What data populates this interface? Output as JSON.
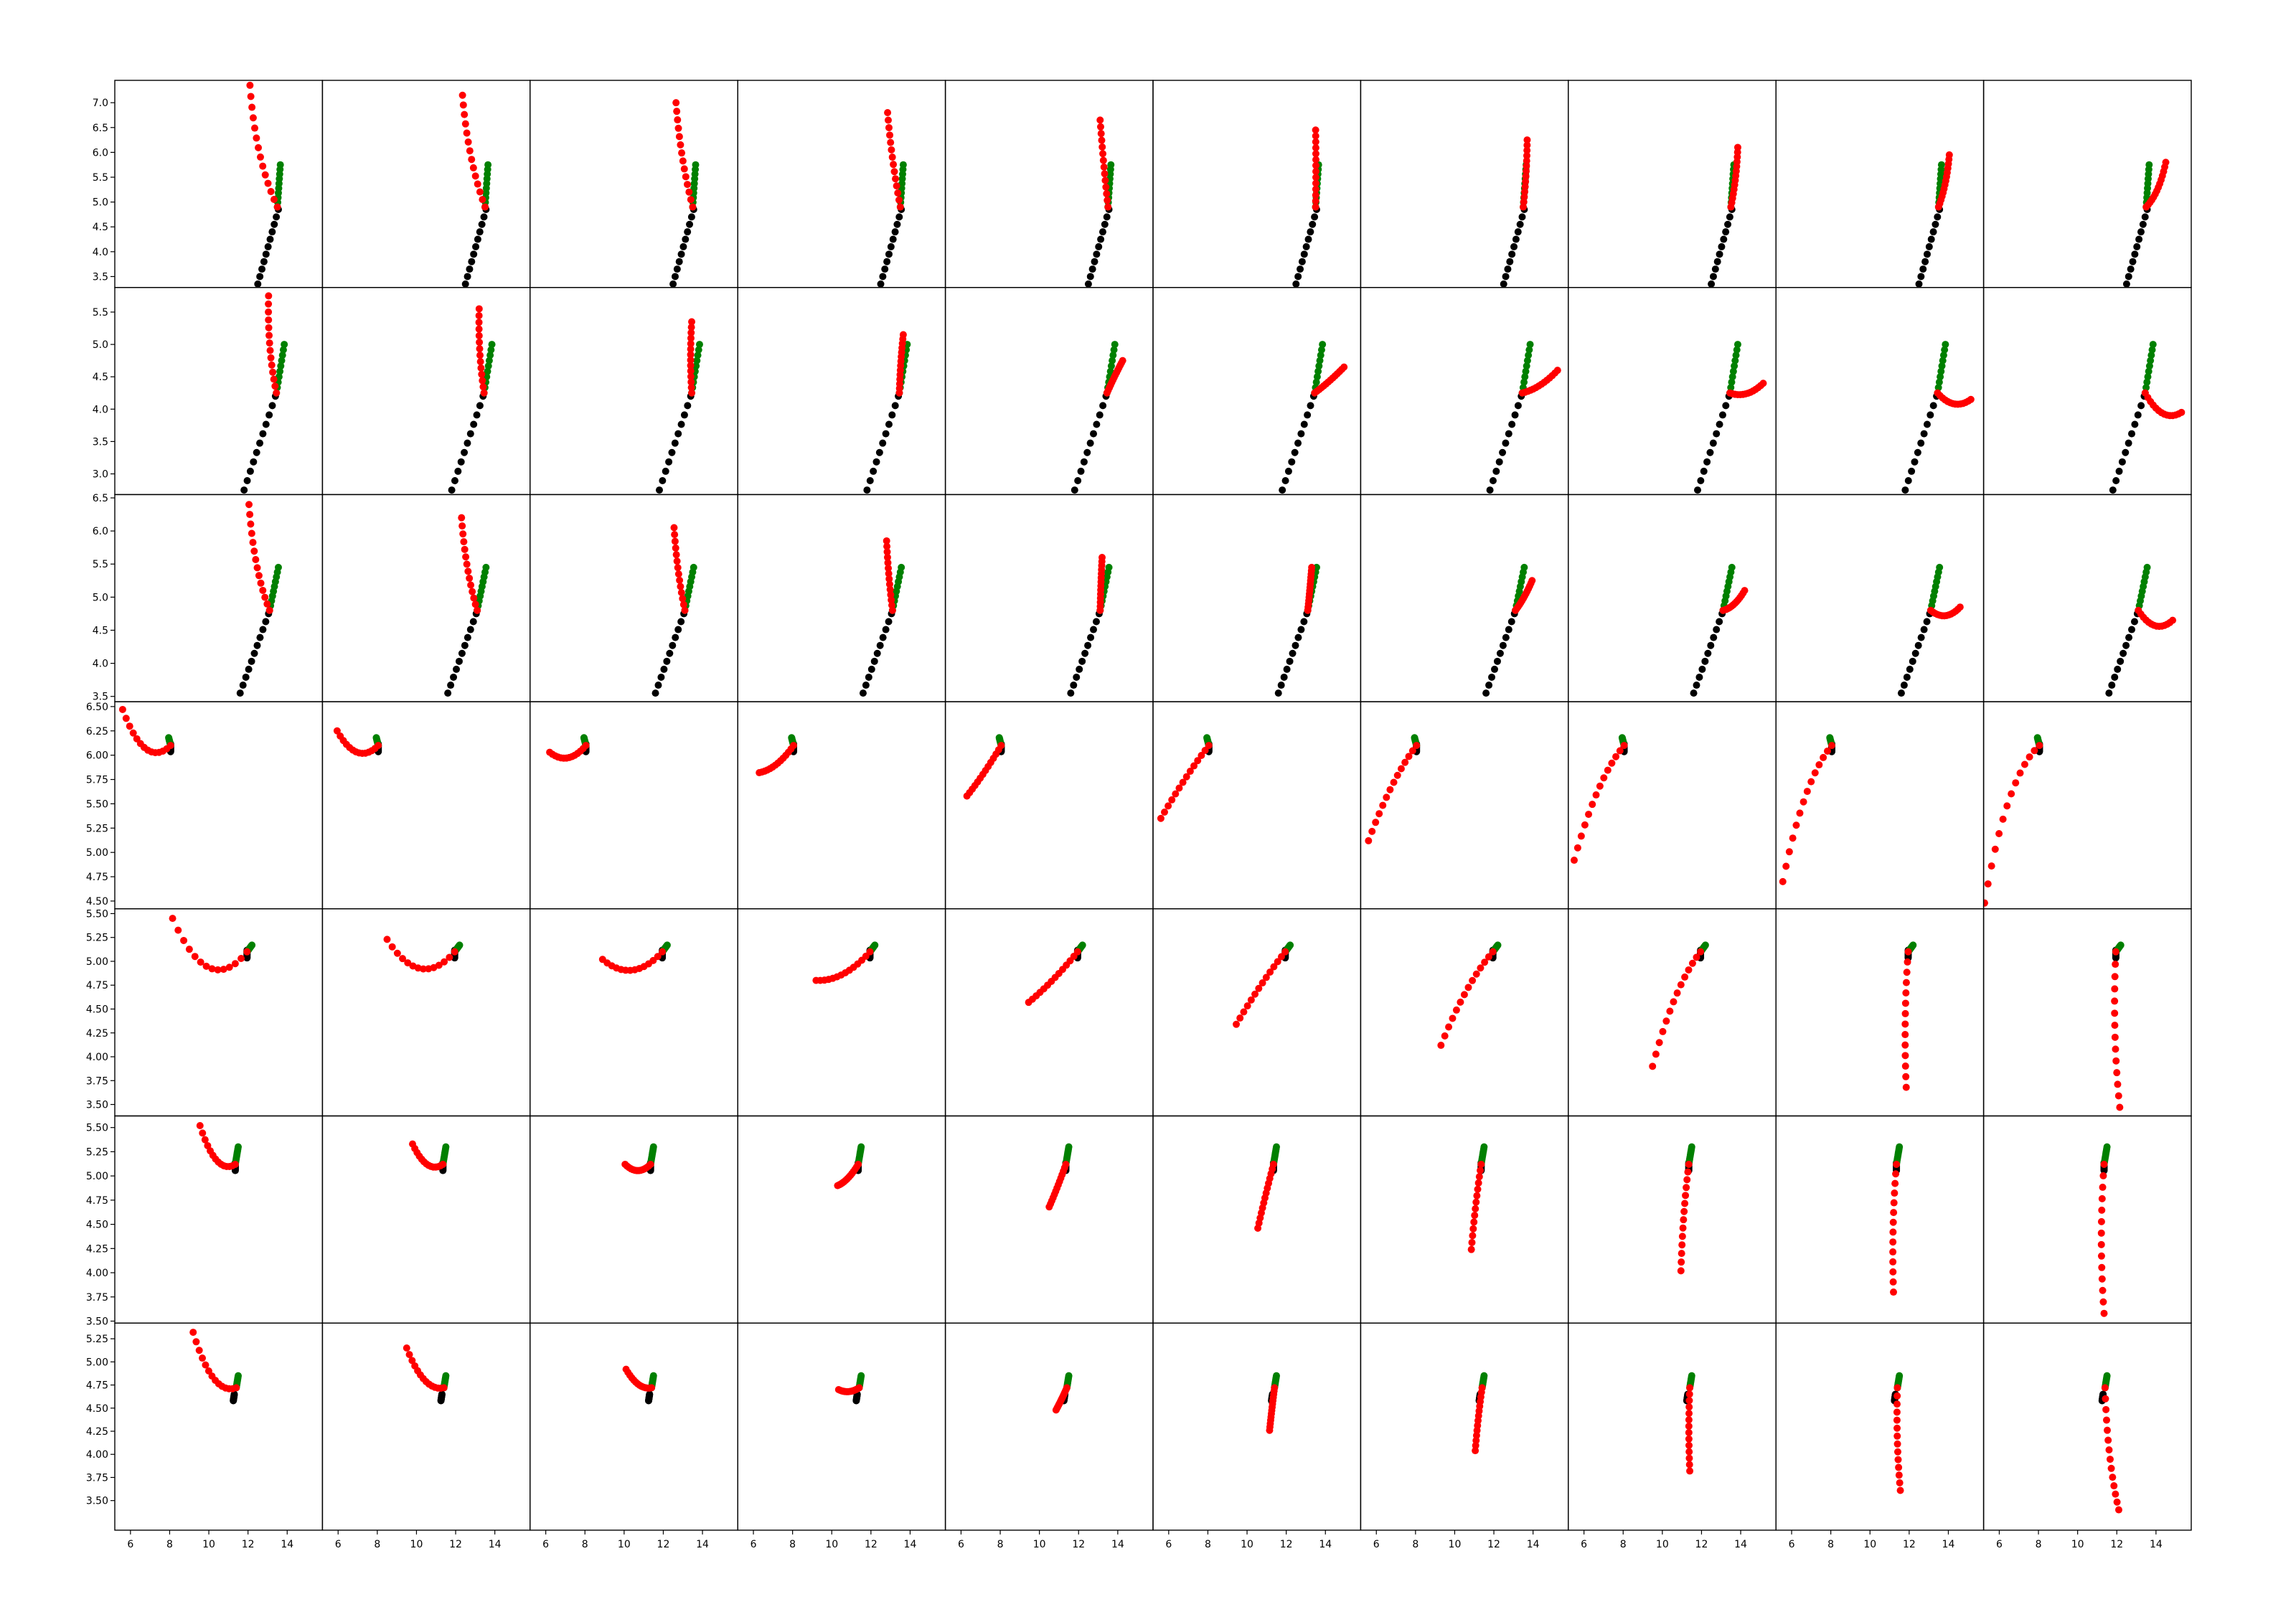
{
  "chart_data": {
    "type": "scatter",
    "title": "",
    "xlabel": "",
    "ylabel": "",
    "grid": false,
    "legend": "none",
    "layout": {
      "rows": 7,
      "cols": 10,
      "sharex": true,
      "sharey": "row"
    },
    "colors": {
      "history": "#000000",
      "ground_truth": "#008000",
      "prediction": "#ff0000"
    },
    "xlim": [
      5.2,
      15.8
    ],
    "xticks": [
      6,
      8,
      10,
      12,
      14
    ],
    "rows": [
      {
        "ylim": [
          3.28,
          7.45
        ],
        "yticks": [
          "3.5",
          "4.0",
          "4.5",
          "5.0",
          "5.5",
          "6.0",
          "6.5",
          "7.0"
        ],
        "history": {
          "start": [
            12.5,
            3.35
          ],
          "end": [
            13.55,
            4.85
          ],
          "n": 11
        },
        "ground_truth": {
          "start": [
            13.5,
            4.9
          ],
          "end": [
            13.65,
            5.75
          ],
          "n": 10
        },
        "prediction_end": [
          [
            12.1,
            7.35
          ],
          [
            12.35,
            7.15
          ],
          [
            12.65,
            7.0
          ],
          [
            12.85,
            6.8
          ],
          [
            13.1,
            6.65
          ],
          [
            13.5,
            6.45
          ],
          [
            13.7,
            6.25
          ],
          [
            13.85,
            6.1
          ],
          [
            14.05,
            5.95
          ],
          [
            14.5,
            5.8
          ]
        ]
      },
      {
        "ylim": [
          2.68,
          5.88
        ],
        "yticks": [
          "3.0",
          "3.5",
          "4.0",
          "4.5",
          "5.0",
          "5.5"
        ],
        "history": {
          "start": [
            11.8,
            2.75
          ],
          "end": [
            13.4,
            4.2
          ],
          "n": 11
        },
        "ground_truth": {
          "start": [
            13.45,
            4.25
          ],
          "end": [
            13.85,
            5.0
          ],
          "n": 10
        },
        "prediction_end": [
          [
            13.05,
            5.75
          ],
          [
            13.2,
            5.55
          ],
          [
            13.45,
            5.35
          ],
          [
            13.65,
            5.15
          ],
          [
            14.25,
            4.75
          ],
          [
            14.95,
            4.65
          ],
          [
            15.25,
            4.6
          ],
          [
            15.15,
            4.4
          ],
          [
            15.15,
            4.15
          ],
          [
            15.3,
            3.95
          ]
        ]
      },
      {
        "ylim": [
          3.42,
          6.55
        ],
        "yticks": [
          "3.5",
          "4.0",
          "4.5",
          "5.0",
          "5.5",
          "6.0",
          "6.5"
        ],
        "history": {
          "start": [
            11.6,
            3.55
          ],
          "end": [
            13.05,
            4.75
          ],
          "n": 11
        },
        "ground_truth": {
          "start": [
            13.1,
            4.8
          ],
          "end": [
            13.55,
            5.45
          ],
          "n": 10
        },
        "prediction_end": [
          [
            12.05,
            6.4
          ],
          [
            12.3,
            6.2
          ],
          [
            12.55,
            6.05
          ],
          [
            12.8,
            5.85
          ],
          [
            13.2,
            5.6
          ],
          [
            13.3,
            5.45
          ],
          [
            13.95,
            5.25
          ],
          [
            14.2,
            5.1
          ],
          [
            14.6,
            4.85
          ],
          [
            14.85,
            4.65
          ]
        ]
      },
      {
        "ylim": [
          4.42,
          6.55
        ],
        "yticks": [
          "4.50",
          "4.75",
          "5.00",
          "5.25",
          "5.50",
          "5.75",
          "6.00",
          "6.25",
          "6.50"
        ],
        "history": {
          "start": [
            8.05,
            6.08
          ],
          "end": [
            8.05,
            6.08
          ],
          "n": 11
        },
        "ground_truth": {
          "start": [
            8.05,
            6.1
          ],
          "end": [
            7.95,
            6.18
          ],
          "n": 10
        },
        "prediction_end": [
          [
            5.6,
            6.47
          ],
          [
            5.95,
            6.25
          ],
          [
            6.2,
            6.03
          ],
          [
            6.3,
            5.82
          ],
          [
            6.3,
            5.58
          ],
          [
            5.6,
            5.35
          ],
          [
            5.6,
            5.12
          ],
          [
            5.5,
            4.92
          ],
          [
            5.55,
            4.7
          ],
          [
            5.25,
            4.48
          ]
        ]
      },
      {
        "ylim": [
          3.38,
          5.55
        ],
        "yticks": [
          "3.50",
          "3.75",
          "4.00",
          "4.25",
          "4.50",
          "4.75",
          "5.00",
          "5.25",
          "5.50"
        ],
        "history": {
          "start": [
            11.95,
            5.08
          ],
          "end": [
            11.95,
            5.08
          ],
          "n": 11
        },
        "ground_truth": {
          "start": [
            11.95,
            5.1
          ],
          "end": [
            12.2,
            5.17
          ],
          "n": 10
        },
        "prediction_end": [
          [
            8.15,
            5.45
          ],
          [
            8.5,
            5.23
          ],
          [
            8.9,
            5.02
          ],
          [
            9.2,
            4.8
          ],
          [
            9.45,
            4.57
          ],
          [
            9.45,
            4.34
          ],
          [
            9.3,
            4.12
          ],
          [
            9.5,
            3.9
          ],
          [
            11.85,
            3.68
          ],
          [
            12.15,
            3.47
          ]
        ]
      },
      {
        "ylim": [
          3.48,
          5.62
        ],
        "yticks": [
          "3.50",
          "3.75",
          "4.00",
          "4.25",
          "4.50",
          "4.75",
          "5.00",
          "5.25",
          "5.50"
        ],
        "history": {
          "start": [
            11.35,
            5.1
          ],
          "end": [
            11.35,
            5.1
          ],
          "n": 11
        },
        "ground_truth": {
          "start": [
            11.35,
            5.12
          ],
          "end": [
            11.5,
            5.3
          ],
          "n": 10
        },
        "prediction_end": [
          [
            9.55,
            5.52
          ],
          [
            9.8,
            5.33
          ],
          [
            10.05,
            5.12
          ],
          [
            10.3,
            4.9
          ],
          [
            10.5,
            4.68
          ],
          [
            10.55,
            4.46
          ],
          [
            10.85,
            4.24
          ],
          [
            10.95,
            4.02
          ],
          [
            11.2,
            3.8
          ],
          [
            11.35,
            3.58
          ]
        ]
      },
      {
        "ylim": [
          3.18,
          5.42
        ],
        "yticks": [
          "3.50",
          "3.75",
          "4.00",
          "4.25",
          "4.50",
          "4.75",
          "5.00",
          "5.25"
        ],
        "history": {
          "start": [
            11.25,
            4.58
          ],
          "end": [
            11.3,
            4.65
          ],
          "n": 11
        },
        "ground_truth": {
          "start": [
            11.4,
            4.72
          ],
          "end": [
            11.5,
            4.85
          ],
          "n": 10
        },
        "prediction_end": [
          [
            9.2,
            5.32
          ],
          [
            9.5,
            5.15
          ],
          [
            10.1,
            4.92
          ],
          [
            10.35,
            4.7
          ],
          [
            10.85,
            4.48
          ],
          [
            11.15,
            4.26
          ],
          [
            11.05,
            4.04
          ],
          [
            11.4,
            3.82
          ],
          [
            11.55,
            3.61
          ],
          [
            12.1,
            3.4
          ]
        ]
      }
    ]
  }
}
